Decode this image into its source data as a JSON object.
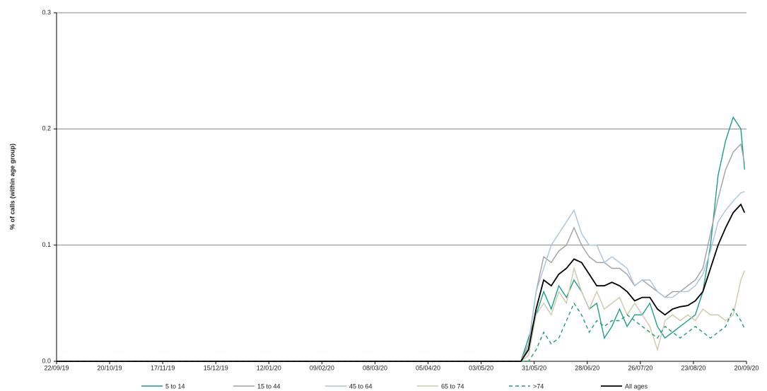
{
  "chart_data": {
    "type": "line",
    "y_label": "% of calls (within age group)",
    "x": [
      "22/09/19",
      "24/05/20",
      "28/05/20",
      "01/06/20",
      "05/06/20",
      "09/06/20",
      "13/06/20",
      "17/06/20",
      "21/06/20",
      "25/06/20",
      "29/06/20",
      "03/07/20",
      "07/07/20",
      "11/07/20",
      "15/07/20",
      "19/07/20",
      "23/07/20",
      "27/07/20",
      "31/07/20",
      "04/08/20",
      "08/08/20",
      "12/08/20",
      "16/08/20",
      "20/08/20",
      "24/08/20",
      "28/08/20",
      "01/09/20",
      "05/09/20",
      "09/09/20",
      "13/09/20",
      "17/09/20",
      "19/09/20"
    ],
    "series": [
      {
        "name": "5 to 14",
        "color": "#1a9f8a",
        "dashed": false,
        "values": [
          0,
          0,
          0.02,
          0.04,
          0.06,
          0.045,
          0.065,
          0.055,
          0.07,
          0.06,
          0.045,
          0.05,
          0.02,
          0.03,
          0.045,
          0.03,
          0.04,
          0.04,
          0.05,
          0.03,
          0.02,
          0.025,
          0.03,
          0.035,
          0.04,
          0.06,
          0.1,
          0.16,
          0.19,
          0.21,
          0.2,
          0.165
        ]
      },
      {
        "name": "15 to 44",
        "color": "#a0a0a0",
        "dashed": false,
        "values": [
          0,
          0,
          0.015,
          0.06,
          0.09,
          0.085,
          0.095,
          0.1,
          0.115,
          0.1,
          0.09,
          0.085,
          0.085,
          0.08,
          0.08,
          0.075,
          0.065,
          0.07,
          0.065,
          0.06,
          0.055,
          0.06,
          0.06,
          0.065,
          0.07,
          0.08,
          0.11,
          0.14,
          0.165,
          0.18,
          0.187,
          0.17
        ]
      },
      {
        "name": "45 to 64",
        "color": "#a8c4dc",
        "dashed": false,
        "values": [
          0,
          0,
          0.012,
          0.06,
          0.08,
          0.1,
          0.11,
          0.12,
          0.13,
          0.11,
          0.1,
          0.1,
          0.085,
          0.09,
          0.085,
          0.08,
          0.065,
          0.07,
          0.07,
          0.06,
          0.055,
          0.055,
          0.06,
          0.06,
          0.065,
          0.075,
          0.095,
          0.12,
          0.13,
          0.138,
          0.145,
          0.146
        ]
      },
      {
        "name": "65 to 74",
        "color": "#cfc8a8",
        "dashed": false,
        "values": [
          0,
          0,
          0.005,
          0.04,
          0.05,
          0.04,
          0.06,
          0.05,
          0.08,
          0.06,
          0.045,
          0.06,
          0.045,
          0.05,
          0.055,
          0.04,
          0.05,
          0.04,
          0.03,
          0.01,
          0.035,
          0.04,
          0.035,
          0.04,
          0.035,
          0.045,
          0.04,
          0.04,
          0.035,
          0.04,
          0.07,
          0.078
        ]
      },
      {
        "name": ">74",
        "color": "#1aa070",
        "dashed": true,
        "values": [
          0,
          0,
          0,
          0.01,
          0.025,
          0.015,
          0.02,
          0.035,
          0.05,
          0.04,
          0.025,
          0.035,
          0.03,
          0.035,
          0.035,
          0.04,
          0.035,
          0.03,
          0.025,
          0.02,
          0.03,
          0.025,
          0.02,
          0.025,
          0.03,
          0.025,
          0.02,
          0.025,
          0.03,
          0.045,
          0.035,
          0.028
        ]
      },
      {
        "name": "All ages",
        "color": "#000000",
        "dashed": false,
        "values": [
          0,
          0,
          0.01,
          0.045,
          0.07,
          0.065,
          0.075,
          0.08,
          0.088,
          0.085,
          0.075,
          0.065,
          0.065,
          0.068,
          0.065,
          0.06,
          0.052,
          0.055,
          0.055,
          0.045,
          0.04,
          0.045,
          0.047,
          0.048,
          0.052,
          0.06,
          0.08,
          0.1,
          0.115,
          0.128,
          0.135,
          0.128
        ]
      }
    ],
    "xlim": [
      "22/09/19",
      "20/09/20"
    ],
    "xticks": [
      "22/09/19",
      "20/10/19",
      "17/11/19",
      "15/12/19",
      "12/01/20",
      "09/02/20",
      "08/03/20",
      "05/04/20",
      "03/05/20",
      "31/05/20",
      "28/06/20",
      "26/07/20",
      "23/08/20",
      "20/09/20"
    ],
    "ylim": [
      0,
      0.3
    ],
    "yticks": [
      {
        "value": 0,
        "label": "0.0"
      },
      {
        "value": 0.1,
        "label": "0.1"
      },
      {
        "value": 0.2,
        "label": "0.2"
      },
      {
        "value": 0.3,
        "label": "0.3"
      }
    ],
    "grid": true,
    "legend": "bottom"
  }
}
